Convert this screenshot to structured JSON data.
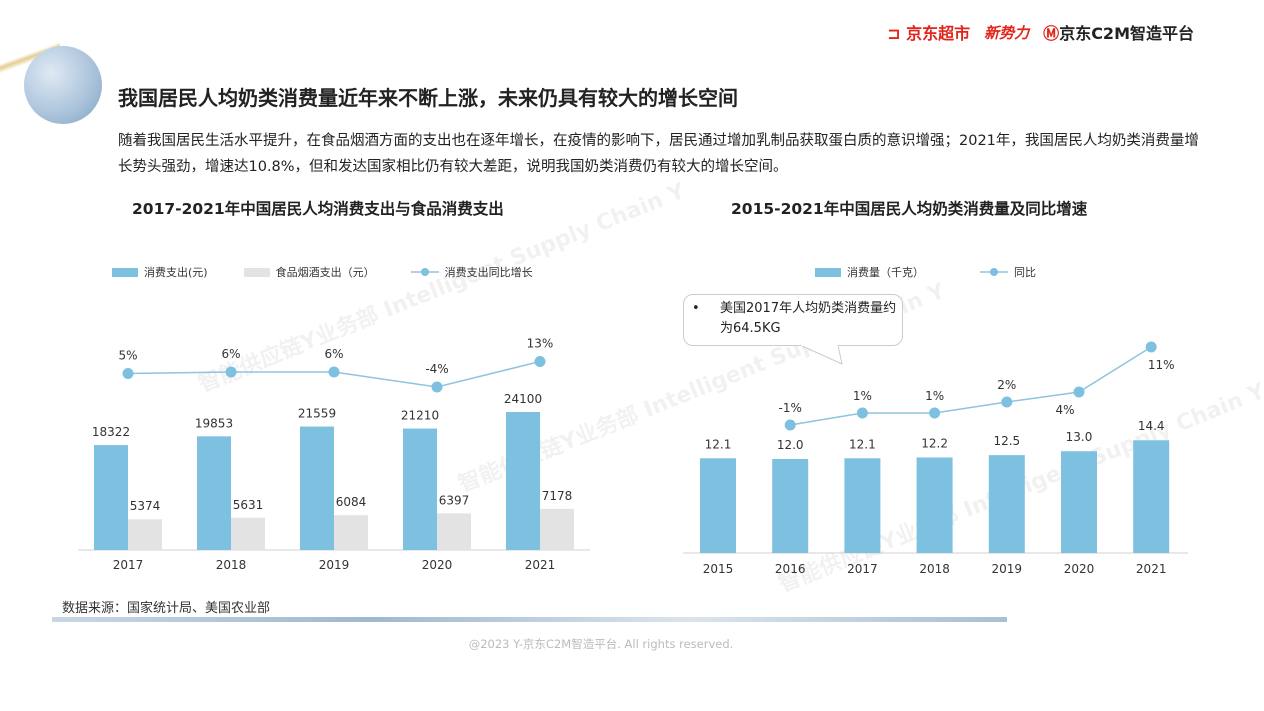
{
  "header": {
    "logos": [
      "京东超市",
      "新势力",
      "京东C2M智造平台"
    ],
    "logo_sub": "京东超市"
  },
  "title": "我国居民人均奶类消费量近年来不断上涨，未来仍具有较大的增长空间",
  "paragraph": "随着我国居民生活水平提升，在食品烟酒方面的支出也在逐年增长，在疫情的影响下，居民通过增加乳制品获取蛋白质的意识增强；2021年，我国居民人均奶类消费量增长势头强劲，增速达10.8%，但和发达国家相比仍有较大差距，说明我国奶类消费仍有较大的增长空间。",
  "watermark": "智能供应链Y业务部 Intelligent Supply Chain Y",
  "colors": {
    "bar_blue": "#7ec0df",
    "bar_gray": "#e3e3e3",
    "line": "#8fc3de",
    "point": "#7ec0df",
    "logo_red": "#e1251b"
  },
  "chart_data": [
    {
      "type": "bar",
      "title": "2017-2021年中国居民人均消费支出与食品消费支出",
      "categories": [
        "2017",
        "2018",
        "2019",
        "2020",
        "2021"
      ],
      "series": [
        {
          "name": "消费支出(元)",
          "kind": "bar",
          "values": [
            18322,
            19853,
            21559,
            21210,
            24100
          ],
          "labels": [
            "18322",
            "19853",
            "21559",
            "21210",
            "24100"
          ]
        },
        {
          "name": "食品烟酒支出（元）",
          "kind": "bar",
          "values": [
            5374,
            5631,
            6084,
            6397,
            7178
          ],
          "labels": [
            "5374",
            "5631",
            "6084",
            "6397",
            "7178"
          ]
        },
        {
          "name": "消费支出同比增长",
          "kind": "line",
          "values": [
            5,
            6,
            6,
            -4,
            13
          ],
          "labels": [
            "5%",
            "6%",
            "6%",
            "-4%",
            "13%"
          ],
          "unit": "%"
        }
      ],
      "legend_position": "top-left",
      "grid": false
    },
    {
      "type": "bar",
      "title": "2015-2021年中国居民人均奶类消费量及同比增速",
      "categories": [
        "2015",
        "2016",
        "2017",
        "2018",
        "2019",
        "2020",
        "2021"
      ],
      "series": [
        {
          "name": "消费量（千克）",
          "kind": "bar",
          "values": [
            12.1,
            12.0,
            12.1,
            12.2,
            12.5,
            13.0,
            14.4
          ],
          "labels": [
            "12.1",
            "12.0",
            "12.1",
            "12.2",
            "12.5",
            "13.0",
            "14.4"
          ]
        },
        {
          "name": "同比",
          "kind": "line",
          "values": [
            null,
            -1,
            1,
            1,
            2,
            4,
            11
          ],
          "labels": [
            "",
            "-1%",
            "1%",
            "1%",
            "2%",
            "4%",
            "11%"
          ],
          "unit": "%"
        }
      ],
      "annotation": {
        "bullet": "•",
        "text": "美国2017年人均奶类消费量约为64.5KG"
      },
      "legend_position": "top-left",
      "grid": false
    }
  ],
  "source": "数据来源：国家统计局、美国农业部",
  "footer": "@2023 Y-京东C2M智造平台. All rights reserved."
}
